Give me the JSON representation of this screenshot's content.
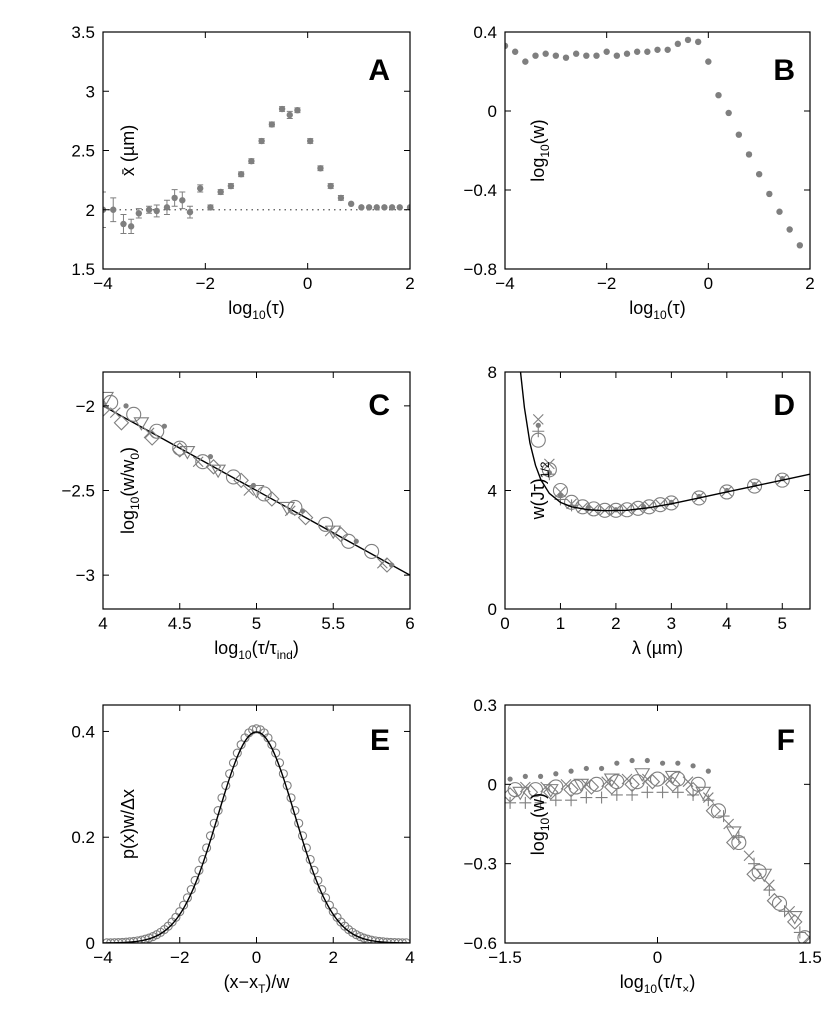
{
  "chart_data": [
    {
      "panel": "A",
      "type": "scatter",
      "xlim": [
        -4,
        2
      ],
      "ylim": [
        1.5,
        3.5
      ],
      "xticks": [
        "−4",
        "−2",
        "0",
        "2"
      ],
      "xtickvals": [
        -4,
        -2,
        0,
        2
      ],
      "yticks": [
        "1.5",
        "2",
        "2.5",
        "3",
        "3.5"
      ],
      "ytickvals": [
        1.5,
        2,
        2.5,
        3,
        3.5
      ],
      "xlabel": [
        "log",
        "10",
        "(τ)"
      ],
      "ylabel": [
        "x̄ (µm)"
      ],
      "reference_line_y": 2.0,
      "series": [
        {
          "marker": "dot",
          "x": [
            -4.0,
            -3.8,
            -3.6,
            -3.45,
            -3.3,
            -3.1,
            -2.95,
            -2.75,
            -2.6,
            -2.45,
            -2.3,
            -2.1,
            -1.9,
            -1.7,
            -1.5,
            -1.3,
            -1.1,
            -0.9,
            -0.7,
            -0.5,
            -0.35,
            -0.2,
            0.05,
            0.25,
            0.45,
            0.65,
            0.85,
            1.05,
            1.2,
            1.35,
            1.5,
            1.65,
            1.8,
            2.0
          ],
          "y": [
            2.0,
            2.0,
            1.88,
            1.86,
            1.97,
            2.0,
            1.99,
            2.02,
            2.1,
            2.08,
            1.98,
            2.18,
            2.02,
            2.15,
            2.2,
            2.3,
            2.41,
            2.58,
            2.72,
            2.85,
            2.8,
            2.84,
            2.58,
            2.35,
            2.2,
            2.1,
            2.05,
            2.02,
            2.02,
            2.02,
            2.02,
            2.02,
            2.02,
            2.02
          ],
          "yerr": [
            0.15,
            0.1,
            0.08,
            0.06,
            0.04,
            0.03,
            0.05,
            0.06,
            0.07,
            0.07,
            0.05,
            0.03,
            0.02,
            0.02,
            0.02,
            0.02,
            0.02,
            0.02,
            0.02,
            0.02,
            0.03,
            0.02,
            0.02,
            0.02,
            0.02,
            0.02,
            0.01,
            0.01,
            0.01,
            0.01,
            0.01,
            0.01,
            0.01,
            0.01
          ]
        }
      ]
    },
    {
      "panel": "B",
      "type": "scatter",
      "xlim": [
        -4,
        2
      ],
      "ylim": [
        -0.8,
        0.4
      ],
      "xticks": [
        "−4",
        "−2",
        "0",
        "2"
      ],
      "xtickvals": [
        -4,
        -2,
        0,
        2
      ],
      "yticks": [
        "−0.8",
        "−0.4",
        "0",
        "0.4"
      ],
      "ytickvals": [
        -0.8,
        -0.4,
        0,
        0.4
      ],
      "xlabel": [
        "log",
        "10",
        "(τ)"
      ],
      "ylabel": [
        "log",
        "10",
        "(w)"
      ],
      "series": [
        {
          "marker": "dot",
          "x": [
            -4.0,
            -3.8,
            -3.6,
            -3.4,
            -3.2,
            -3.0,
            -2.8,
            -2.6,
            -2.4,
            -2.2,
            -2.0,
            -1.8,
            -1.6,
            -1.4,
            -1.2,
            -1.0,
            -0.8,
            -0.6,
            -0.4,
            -0.2,
            0.0,
            0.2,
            0.4,
            0.6,
            0.8,
            1.0,
            1.2,
            1.4,
            1.6,
            1.8
          ],
          "y": [
            0.33,
            0.3,
            0.25,
            0.28,
            0.29,
            0.28,
            0.27,
            0.29,
            0.28,
            0.28,
            0.3,
            0.28,
            0.29,
            0.3,
            0.3,
            0.31,
            0.31,
            0.34,
            0.36,
            0.35,
            0.25,
            0.08,
            -0.01,
            -0.12,
            -0.22,
            -0.32,
            -0.42,
            -0.51,
            -0.6,
            -0.68
          ]
        }
      ]
    },
    {
      "panel": "C",
      "type": "scatter",
      "xlim": [
        4,
        6
      ],
      "ylim": [
        -3.2,
        -1.8
      ],
      "xticks": [
        "4",
        "4.5",
        "5",
        "5.5",
        "6"
      ],
      "xtickvals": [
        4,
        4.5,
        5,
        5.5,
        6
      ],
      "yticks": [
        "−3",
        "−2.5",
        "−2"
      ],
      "ytickvals": [
        -3,
        -2.5,
        -2
      ],
      "xlabel": [
        "log",
        "10",
        "(τ/τ",
        "ind",
        ")"
      ],
      "ylabel": [
        "log",
        "10",
        "(w/w",
        "0",
        ")"
      ],
      "fit_line": {
        "x": [
          4,
          6
        ],
        "y": [
          -2.0,
          -3.0
        ]
      },
      "series": [
        {
          "marker": "circle",
          "x": [
            4.05,
            4.2,
            4.35,
            4.5,
            4.65,
            4.85,
            5.05,
            5.25,
            5.45,
            5.6,
            5.75
          ],
          "y": [
            -1.98,
            -2.05,
            -2.15,
            -2.25,
            -2.33,
            -2.42,
            -2.52,
            -2.6,
            -2.7,
            -2.8,
            -2.86
          ]
        },
        {
          "marker": "triangle-down",
          "x": [
            4.02,
            4.25,
            4.55,
            4.75,
            5.0,
            5.2,
            5.5
          ],
          "y": [
            -1.95,
            -2.1,
            -2.27,
            -2.38,
            -2.5,
            -2.6,
            -2.74
          ]
        },
        {
          "marker": "diamond",
          "x": [
            4.0,
            4.12,
            4.32,
            4.5,
            4.72,
            4.9,
            5.1,
            5.32,
            5.55,
            5.85
          ],
          "y": [
            -2.02,
            -2.1,
            -2.19,
            -2.26,
            -2.36,
            -2.44,
            -2.55,
            -2.66,
            -2.76,
            -2.94
          ]
        },
        {
          "marker": "cross",
          "x": [
            4.08,
            4.3,
            4.62,
            4.95,
            5.22,
            5.48,
            5.82
          ],
          "y": [
            -2.04,
            -2.16,
            -2.33,
            -2.5,
            -2.62,
            -2.74,
            -2.93
          ]
        },
        {
          "marker": "dot",
          "x": [
            4.15,
            4.4,
            4.7,
            4.98,
            5.3,
            5.65,
            5.88
          ],
          "y": [
            -2.0,
            -2.12,
            -2.3,
            -2.47,
            -2.62,
            -2.8,
            -2.94
          ]
        }
      ]
    },
    {
      "panel": "D",
      "type": "scatter",
      "xlim": [
        0,
        5.5
      ],
      "ylim": [
        0,
        8
      ],
      "xticks": [
        "0",
        "1",
        "2",
        "3",
        "4",
        "5"
      ],
      "xtickvals": [
        0,
        1,
        2,
        3,
        4,
        5
      ],
      "yticks": [
        "0",
        "4",
        "8"
      ],
      "ytickvals": [
        0,
        4,
        8
      ],
      "xlabel": [
        "λ (µm)"
      ],
      "ylabel": [
        "w(Jτ)",
        "1/2"
      ],
      "fit_curve": {
        "x": [
          0.28,
          0.35,
          0.45,
          0.55,
          0.65,
          0.8,
          1.0,
          1.2,
          1.5,
          1.8,
          2.2,
          2.6,
          3.0,
          3.5,
          4.0,
          4.5,
          5.0,
          5.5
        ],
        "y": [
          8.0,
          6.8,
          5.6,
          4.85,
          4.35,
          3.9,
          3.6,
          3.45,
          3.35,
          3.32,
          3.33,
          3.42,
          3.55,
          3.75,
          3.95,
          4.15,
          4.35,
          4.55
        ]
      },
      "series": [
        {
          "marker": "circle",
          "x": [
            0.6,
            0.8,
            1.0,
            1.2,
            1.4,
            1.6,
            1.8,
            2.0,
            2.2,
            2.4,
            2.6,
            2.8,
            3.0,
            3.5,
            4.0,
            4.5,
            5.0
          ],
          "y": [
            5.7,
            4.7,
            4.0,
            3.6,
            3.45,
            3.38,
            3.33,
            3.33,
            3.35,
            3.4,
            3.45,
            3.52,
            3.58,
            3.75,
            3.95,
            4.15,
            4.35
          ]
        },
        {
          "marker": "cross",
          "x": [
            0.6,
            0.8,
            1.0,
            1.2,
            1.4,
            1.6,
            1.8,
            2.0,
            2.2,
            2.4,
            2.6,
            2.8,
            3.0,
            3.5,
            4.0,
            4.5,
            5.0
          ],
          "y": [
            6.4,
            4.9,
            3.95,
            3.55,
            3.42,
            3.36,
            3.33,
            3.34,
            3.37,
            3.42,
            3.47,
            3.53,
            3.6,
            3.78,
            3.98,
            4.18,
            4.38
          ]
        },
        {
          "marker": "plus",
          "x": [
            0.6,
            0.8,
            1.0,
            1.2
          ],
          "y": [
            6.0,
            4.55,
            3.7,
            3.5
          ]
        },
        {
          "marker": "dot",
          "x": [
            0.6,
            0.8,
            1.0,
            1.5,
            2.0,
            2.5,
            3.0,
            3.5,
            4.0,
            4.5,
            5.0
          ],
          "y": [
            6.2,
            4.6,
            3.85,
            3.42,
            3.35,
            3.45,
            3.6,
            3.8,
            4.0,
            4.2,
            4.4
          ]
        }
      ]
    },
    {
      "panel": "E",
      "type": "scatter",
      "xlim": [
        -4,
        4
      ],
      "ylim": [
        0,
        0.45
      ],
      "xticks": [
        "−4",
        "−2",
        "0",
        "2",
        "4"
      ],
      "xtickvals": [
        -4,
        -2,
        0,
        2,
        4
      ],
      "yticks": [
        "0",
        "0.2",
        "0.4"
      ],
      "ytickvals": [
        0,
        0.2,
        0.4
      ],
      "xlabel": [
        "(x−x",
        "T",
        ")/w"
      ],
      "ylabel": [
        "p(x)w/Δx"
      ],
      "fit_curve": {
        "function": "gaussian",
        "peak": 0.399,
        "sigma": 1.0
      },
      "series": [
        {
          "marker": "circle",
          "function": "gaussian",
          "peak": 0.405,
          "sigma": 1.02,
          "x_from": -3.9,
          "x_to": 3.9,
          "step": 0.1
        }
      ]
    },
    {
      "panel": "F",
      "type": "scatter",
      "xlim": [
        -1.5,
        1.5
      ],
      "ylim": [
        -0.6,
        0.3
      ],
      "xticks": [
        "−1.5",
        "0",
        "1.5"
      ],
      "xtickvals": [
        -1.5,
        0,
        1.5
      ],
      "yticks": [
        "−0.6",
        "−0.3",
        "0",
        "0.3"
      ],
      "ytickvals": [
        -0.6,
        -0.3,
        0,
        0.3
      ],
      "xlabel": [
        "log",
        "10",
        "(τ/τ",
        "×",
        ")"
      ],
      "ylabel": [
        "log",
        "10",
        "(w)"
      ],
      "series": [
        {
          "marker": "dot",
          "x": [
            -1.45,
            -1.3,
            -1.15,
            -1.0,
            -0.85,
            -0.7,
            -0.55,
            -0.4,
            -0.25,
            -0.1,
            0.05,
            0.2,
            0.35,
            0.5
          ],
          "y": [
            0.02,
            0.03,
            0.03,
            0.04,
            0.05,
            0.06,
            0.06,
            0.08,
            0.09,
            0.09,
            0.08,
            0.08,
            0.07,
            0.05
          ]
        },
        {
          "marker": "plus",
          "x": [
            -1.45,
            -1.3,
            -1.15,
            -1.0,
            -0.85,
            -0.7,
            -0.55,
            -0.4,
            -0.25,
            -0.1,
            0.05,
            0.2,
            0.35,
            0.5,
            0.65,
            0.8,
            0.95,
            1.1,
            1.25,
            1.4
          ],
          "y": [
            -0.07,
            -0.07,
            -0.07,
            -0.06,
            -0.06,
            -0.05,
            -0.05,
            -0.04,
            -0.04,
            -0.03,
            -0.03,
            -0.03,
            -0.04,
            -0.06,
            -0.12,
            -0.2,
            -0.3,
            -0.4,
            -0.48,
            -0.56
          ]
        },
        {
          "marker": "circle",
          "x": [
            -1.4,
            -1.2,
            -1.0,
            -0.8,
            -0.6,
            -0.4,
            -0.2,
            0.0,
            0.2,
            0.4,
            0.6,
            0.8,
            1.0,
            1.2,
            1.45
          ],
          "y": [
            -0.02,
            -0.02,
            -0.01,
            -0.01,
            0.0,
            0.01,
            0.01,
            0.02,
            0.02,
            0.0,
            -0.1,
            -0.22,
            -0.33,
            -0.45,
            -0.58
          ]
        },
        {
          "marker": "triangle-down",
          "x": [
            -1.35,
            -1.05,
            -0.75,
            -0.45,
            -0.15,
            0.15,
            0.45,
            0.75,
            1.05,
            1.35
          ],
          "y": [
            -0.03,
            -0.02,
            0.0,
            0.02,
            0.04,
            0.03,
            -0.03,
            -0.18,
            -0.34,
            -0.5
          ]
        },
        {
          "marker": "diamond",
          "x": [
            -1.45,
            -1.25,
            -1.05,
            -0.85,
            -0.65,
            -0.45,
            -0.25,
            -0.05,
            0.15,
            0.35,
            0.55,
            0.75,
            0.95,
            1.15,
            1.35,
            1.5
          ],
          "y": [
            -0.04,
            -0.03,
            -0.03,
            -0.02,
            -0.01,
            -0.01,
            0.0,
            0.01,
            0.0,
            -0.02,
            -0.1,
            -0.22,
            -0.34,
            -0.44,
            -0.52,
            -0.6
          ]
        },
        {
          "marker": "cross",
          "x": [
            -1.3,
            -1.1,
            -0.9,
            -0.7,
            -0.5,
            -0.3,
            -0.1,
            0.1,
            0.3,
            0.5,
            0.7,
            0.9,
            1.1,
            1.3,
            1.5
          ],
          "y": [
            -0.01,
            -0.01,
            0.0,
            0.0,
            0.01,
            0.02,
            0.02,
            0.02,
            0.01,
            -0.05,
            -0.15,
            -0.27,
            -0.38,
            -0.48,
            -0.58
          ]
        }
      ]
    }
  ]
}
